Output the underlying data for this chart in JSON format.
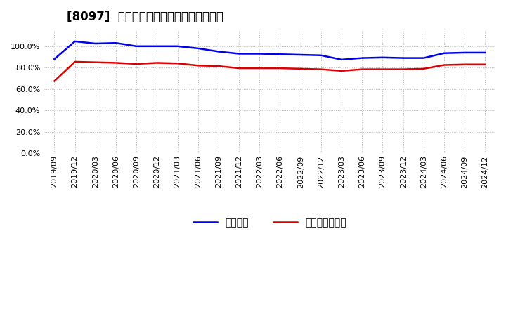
{
  "title": "[8097]  固定比率、固定長期適合率の推移",
  "x_labels": [
    "2019/09",
    "2019/12",
    "2020/03",
    "2020/06",
    "2020/09",
    "2020/12",
    "2021/03",
    "2021/06",
    "2021/09",
    "2021/12",
    "2022/03",
    "2022/06",
    "2022/09",
    "2022/12",
    "2023/03",
    "2023/06",
    "2023/09",
    "2023/12",
    "2024/03",
    "2024/06",
    "2024/09",
    "2024/12"
  ],
  "fixed_ratio": [
    88.0,
    104.5,
    102.5,
    103.0,
    100.0,
    100.0,
    100.0,
    98.0,
    95.0,
    93.0,
    93.0,
    92.5,
    92.0,
    91.5,
    87.5,
    89.0,
    89.5,
    89.0,
    89.0,
    93.5,
    94.0,
    94.0
  ],
  "fixed_long_ratio": [
    67.5,
    85.5,
    85.0,
    84.5,
    83.5,
    84.5,
    84.0,
    82.0,
    81.5,
    79.5,
    79.5,
    79.5,
    79.0,
    78.5,
    77.0,
    78.5,
    78.5,
    78.5,
    79.0,
    82.5,
    83.0,
    83.0
  ],
  "line1_color": "#0000ee",
  "line2_color": "#dd0000",
  "line1_label": "固定比率",
  "line2_label": "固定長期適合率",
  "ylim": [
    0,
    115
  ],
  "yticks": [
    0,
    20,
    40,
    60,
    80,
    100
  ],
  "background_color": "#ffffff",
  "grid_color": "#bbbbbb",
  "title_fontsize": 12,
  "tick_fontsize": 8,
  "legend_fontsize": 10
}
